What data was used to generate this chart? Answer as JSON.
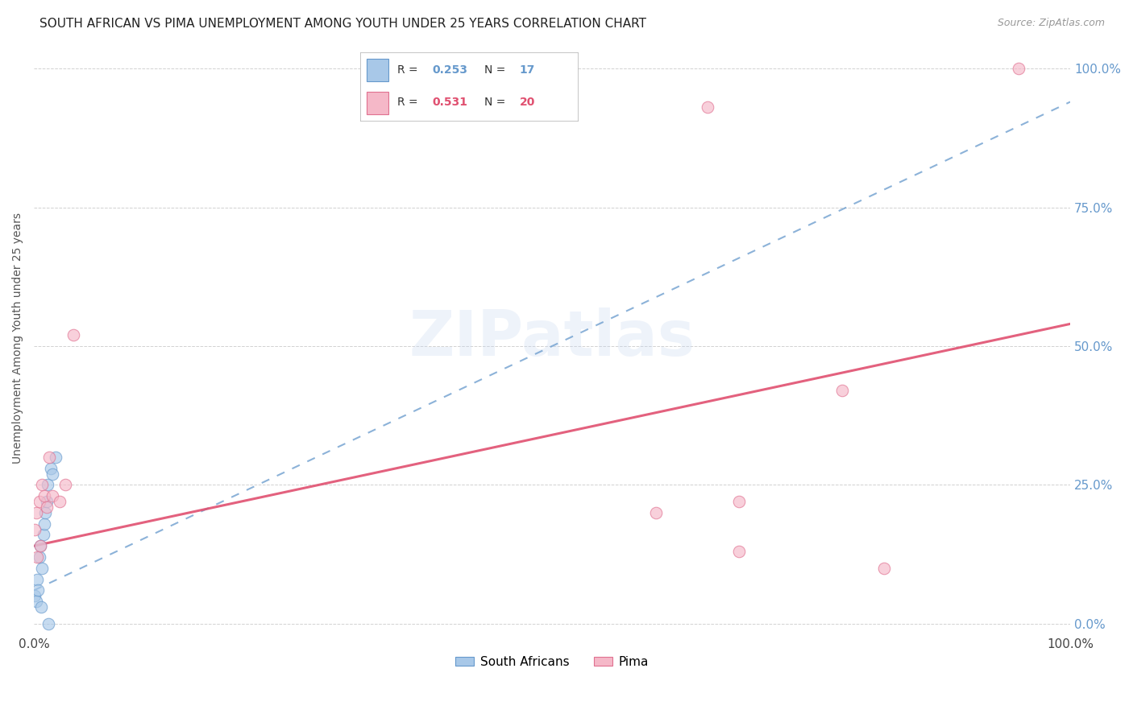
{
  "title": "SOUTH AFRICAN VS PIMA UNEMPLOYMENT AMONG YOUTH UNDER 25 YEARS CORRELATION CHART",
  "source": "Source: ZipAtlas.com",
  "ylabel": "Unemployment Among Youth under 25 years",
  "xlim": [
    0.0,
    1.0
  ],
  "ylim": [
    -0.02,
    1.05
  ],
  "background_color": "#ffffff",
  "watermark": "ZIPatlas",
  "grid_color": "#cccccc",
  "sa_color": "#a8c8e8",
  "sa_edge_color": "#6699cc",
  "pima_color": "#f5b8c8",
  "pima_edge_color": "#e07090",
  "sa_line_color": "#6699cc",
  "pima_line_color": "#e05070",
  "sa_R": 0.253,
  "sa_N": 17,
  "pima_R": 0.531,
  "pima_N": 20,
  "scatter_size": 110,
  "scatter_alpha": 0.65,
  "sa_line_intercept": 0.06,
  "sa_line_slope": 0.88,
  "pima_line_intercept": 0.14,
  "pima_line_slope": 0.4,
  "sa_x": [
    0.001,
    0.002,
    0.003,
    0.004,
    0.005,
    0.006,
    0.007,
    0.008,
    0.009,
    0.01,
    0.011,
    0.012,
    0.013,
    0.014,
    0.016,
    0.018,
    0.021
  ],
  "sa_y": [
    0.05,
    0.04,
    0.08,
    0.06,
    0.12,
    0.14,
    0.03,
    0.1,
    0.16,
    0.18,
    0.2,
    0.22,
    0.25,
    0.0,
    0.28,
    0.27,
    0.3
  ],
  "pima_x": [
    0.001,
    0.002,
    0.003,
    0.005,
    0.006,
    0.008,
    0.01,
    0.012,
    0.015,
    0.018,
    0.025,
    0.03,
    0.038,
    0.6,
    0.68,
    0.78,
    0.82,
    0.65,
    0.68,
    0.95
  ],
  "pima_y": [
    0.17,
    0.2,
    0.12,
    0.22,
    0.14,
    0.25,
    0.23,
    0.21,
    0.3,
    0.23,
    0.22,
    0.25,
    0.52,
    0.2,
    0.13,
    0.42,
    0.1,
    0.93,
    0.22,
    1.0
  ],
  "title_fontsize": 11,
  "label_fontsize": 10,
  "tick_fontsize": 11
}
